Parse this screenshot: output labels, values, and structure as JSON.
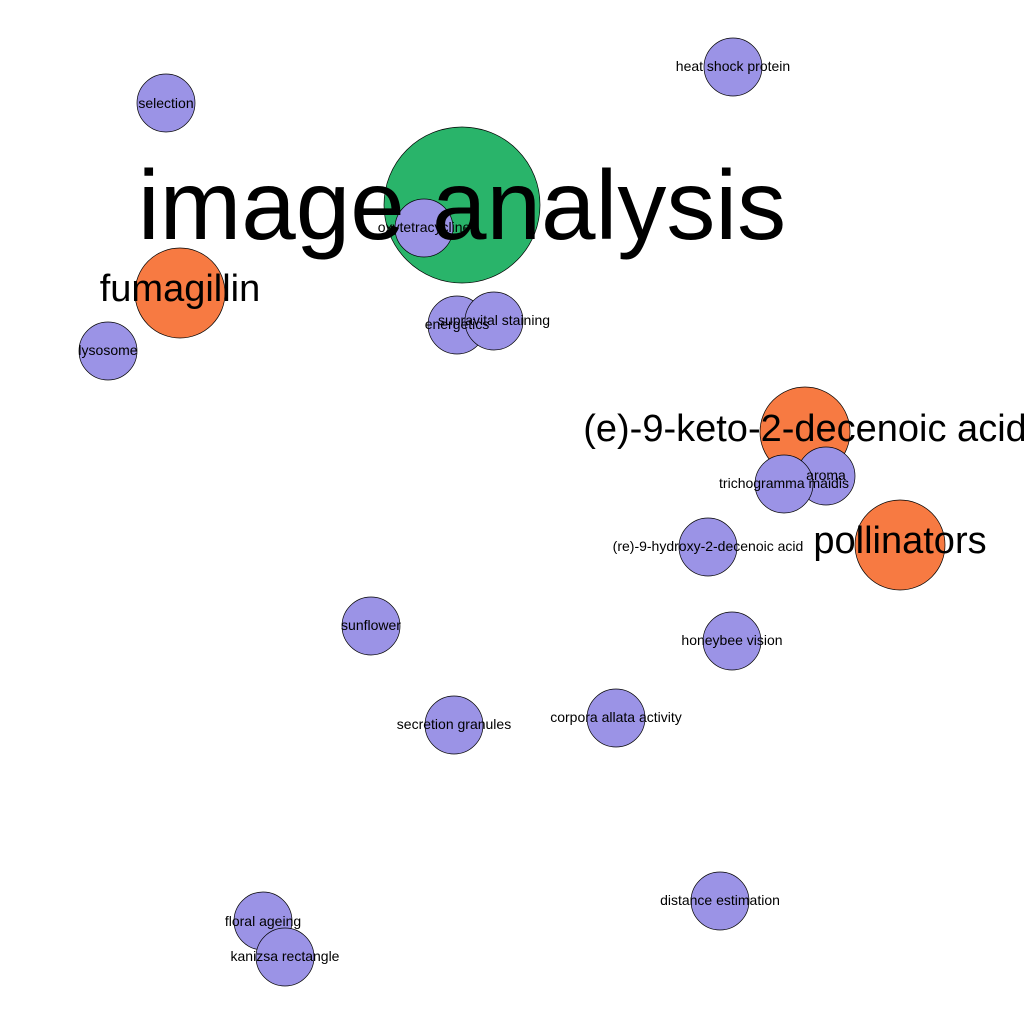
{
  "colors": {
    "background": "#ffffff",
    "default_node": "#9b93e6",
    "highlight_node": "#f77a42",
    "central_node": "#29b46a",
    "label": "#000000",
    "outline": "#000000"
  },
  "nodes": [
    {
      "id": "selection",
      "label": "selection",
      "category": "default"
    },
    {
      "id": "heat-shock-protein",
      "label": "heat shock protein",
      "category": "default"
    },
    {
      "id": "image-analysis",
      "label": "image analysis",
      "category": "central"
    },
    {
      "id": "oxytetracycline",
      "label": "oxytetracycline",
      "category": "default"
    },
    {
      "id": "fumagillin",
      "label": "fumagillin",
      "category": "highlight"
    },
    {
      "id": "energetics",
      "label": "energetics",
      "category": "default"
    },
    {
      "id": "supravital-staining",
      "label": "supravital staining",
      "category": "default"
    },
    {
      "id": "lysosome",
      "label": "lysosome",
      "category": "default"
    },
    {
      "id": "e-9-keto-2-decenoic-acid",
      "label": "(e)-9-keto-2-decenoic acid",
      "category": "highlight"
    },
    {
      "id": "aroma",
      "label": "aroma",
      "category": "default"
    },
    {
      "id": "trichogramma-maidis",
      "label": "trichogramma maidis",
      "category": "default"
    },
    {
      "id": "pollinators",
      "label": "pollinators",
      "category": "highlight"
    },
    {
      "id": "re-9-hydroxy-2-decenoic-acid",
      "label": "(re)-9-hydroxy-2-decenoic acid",
      "category": "default"
    },
    {
      "id": "sunflower",
      "label": "sunflower",
      "category": "default"
    },
    {
      "id": "honeybee-vision",
      "label": "honeybee vision",
      "category": "default"
    },
    {
      "id": "secretion-granules",
      "label": "secretion granules",
      "category": "default"
    },
    {
      "id": "corpora-allata-activity",
      "label": "corpora allata activity",
      "category": "default"
    },
    {
      "id": "distance-estimation",
      "label": "distance estimation",
      "category": "default"
    },
    {
      "id": "floral-ageing",
      "label": "floral ageing",
      "category": "default"
    },
    {
      "id": "kanizsa-rectangle",
      "label": "kanizsa rectangle",
      "category": "default"
    }
  ]
}
